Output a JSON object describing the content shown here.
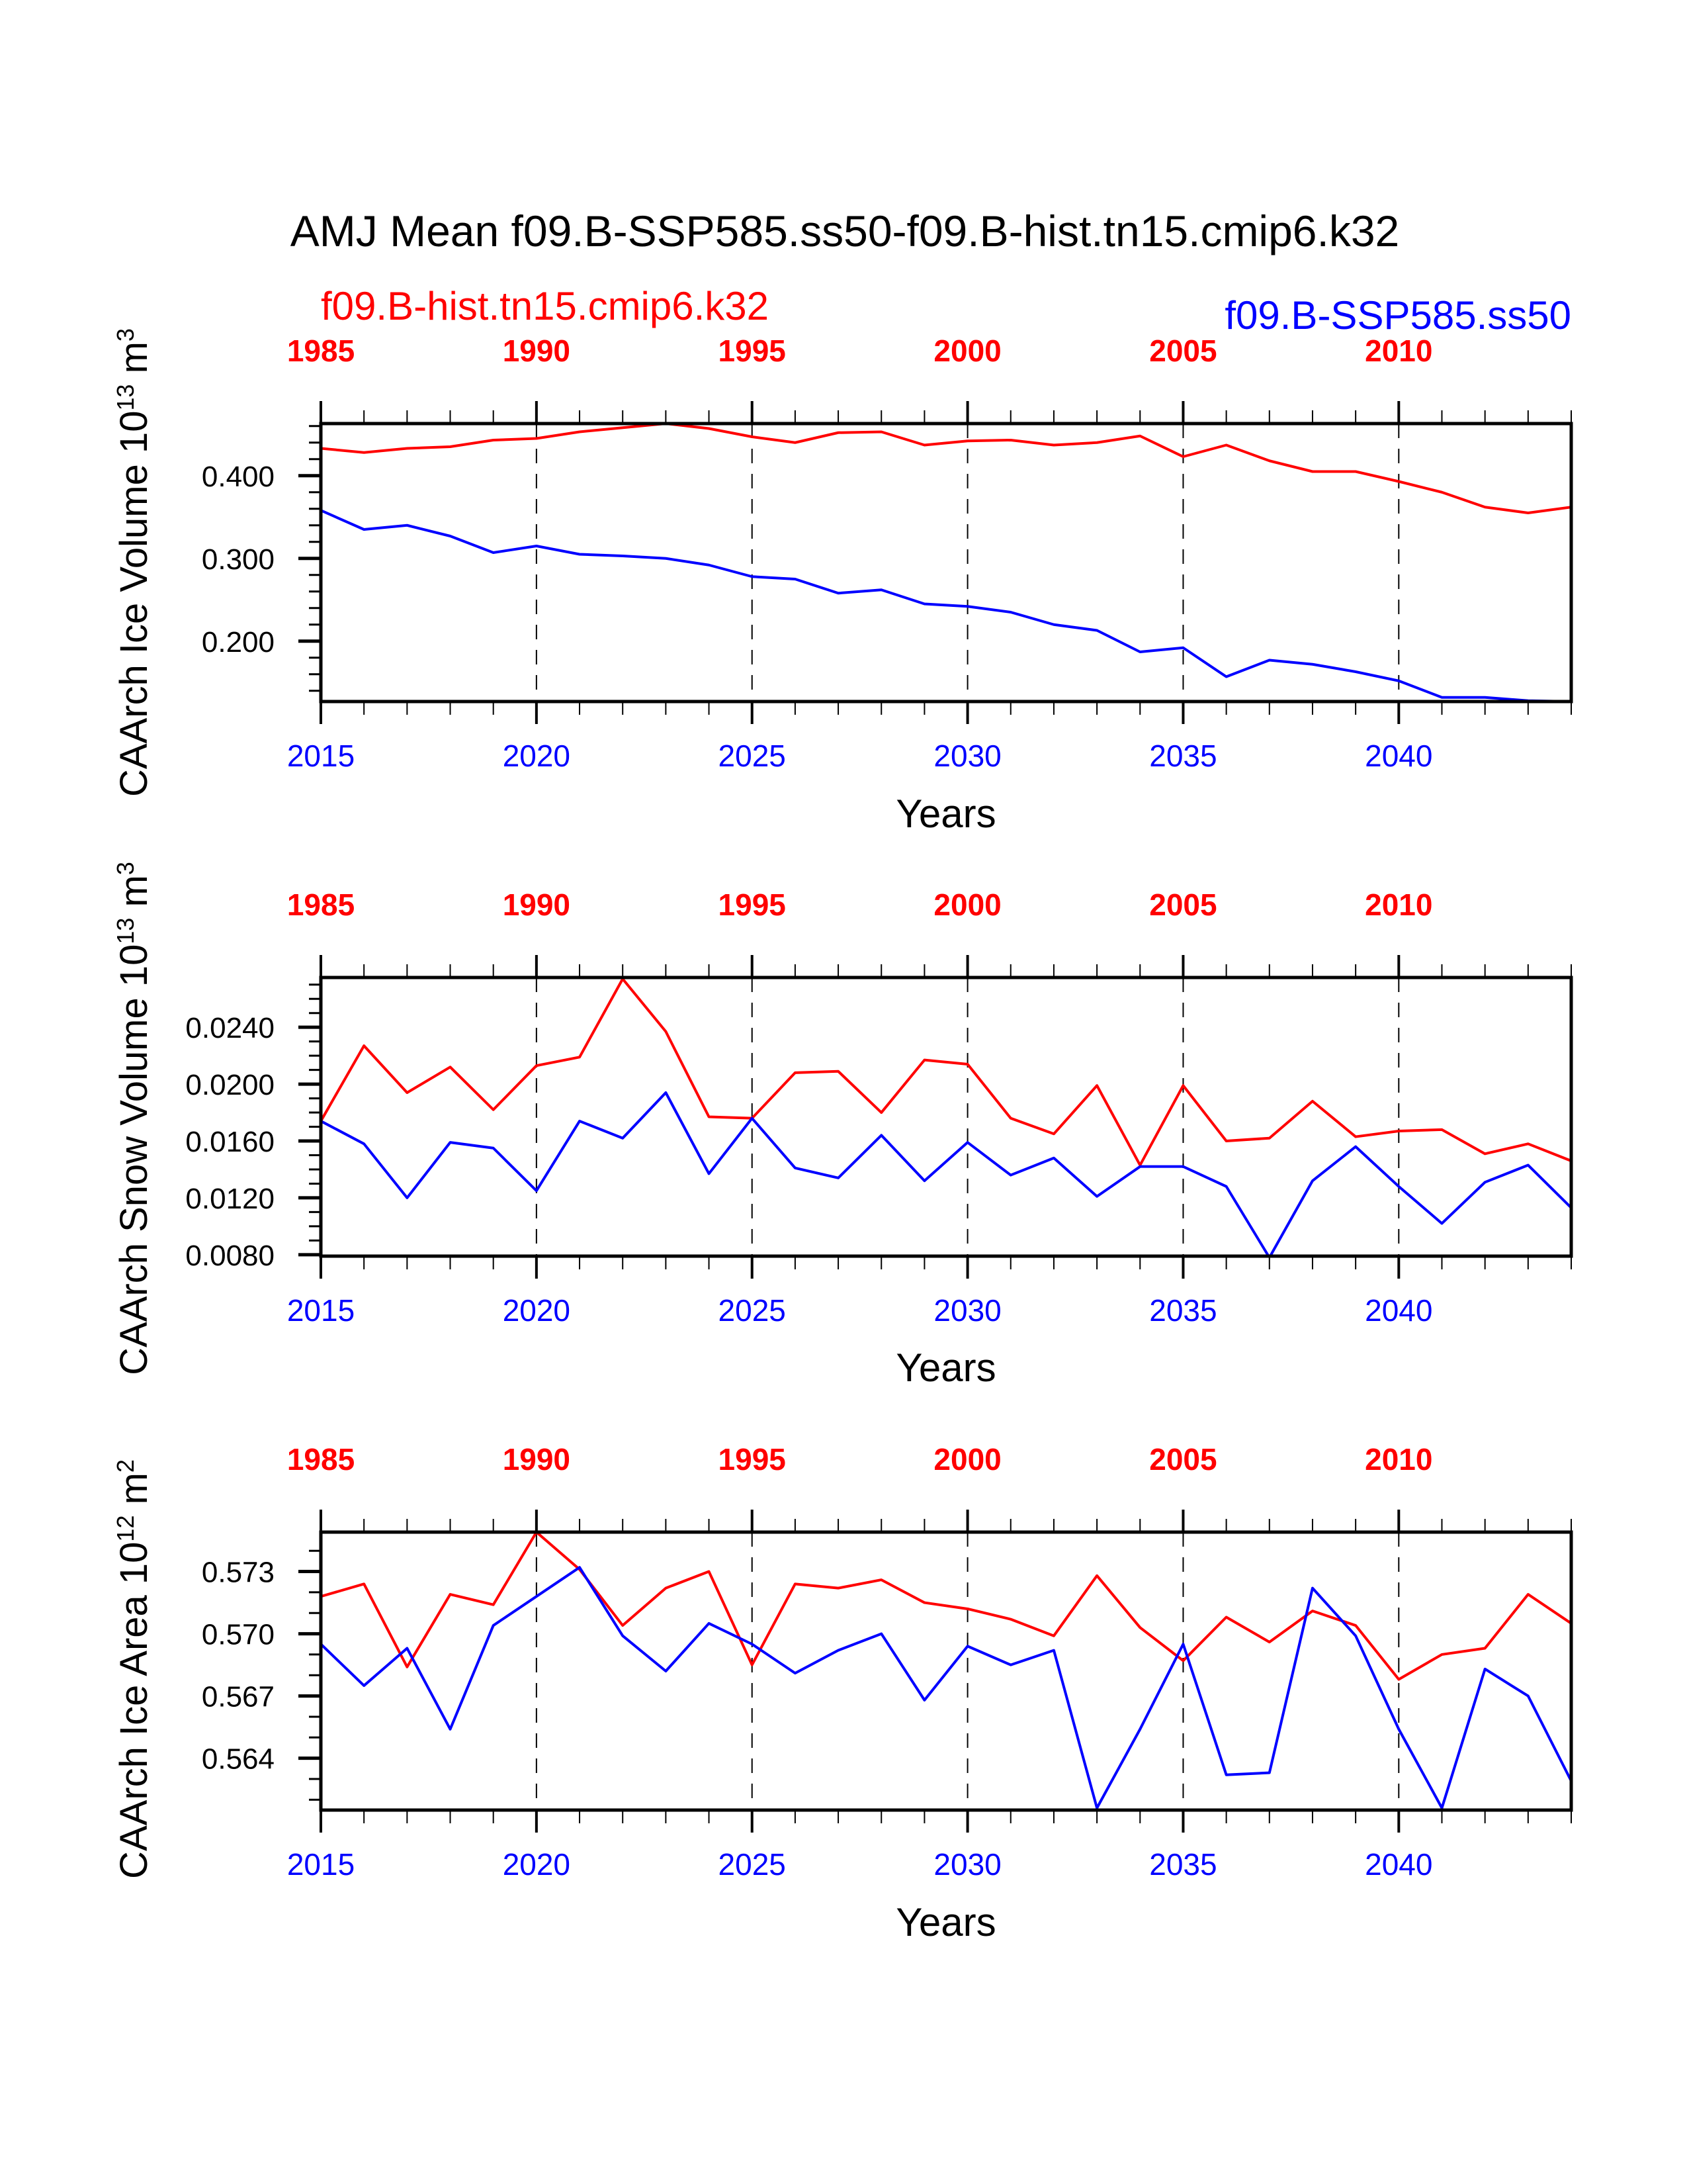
{
  "title": "AMJ Mean f09.B-SSP585.ss50-f09.B-hist.tn15.cmip6.k32",
  "legend": {
    "hist": {
      "label": "f09.B-hist.tn15.cmip6.k32",
      "color": "#ff0000"
    },
    "ssp": {
      "label": "f09.B-SSP585.ss50",
      "color": "#0000ff"
    }
  },
  "chart_data": [
    {
      "type": "line",
      "ylabel": "CAArch Ice Volume 10",
      "ylabel_exp": "13",
      "ylabel_unit": " m",
      "ylabel_unit_exp": "3",
      "xlabel": "Years",
      "ylim": [
        0.127,
        0.463
      ],
      "yticks": [
        "0.200",
        "0.300",
        "0.400"
      ],
      "ytick_values": [
        0.2,
        0.3,
        0.4
      ],
      "yminor_step": 0.02,
      "x": [
        2015,
        2016,
        2017,
        2018,
        2019,
        2020,
        2021,
        2022,
        2023,
        2024,
        2025,
        2026,
        2027,
        2028,
        2029,
        2030,
        2031,
        2032,
        2033,
        2034,
        2035,
        2036,
        2037,
        2038,
        2039,
        2040,
        2041,
        2042,
        2043,
        2044
      ],
      "xlim": [
        2015,
        2044
      ],
      "bottom_ticks": [
        "2015",
        "2020",
        "2025",
        "2030",
        "2035",
        "2040"
      ],
      "top_ticks": [
        "1985",
        "1990",
        "1995",
        "2000",
        "2005",
        "2010"
      ],
      "grid": "dashed vertical at major x ticks",
      "series": [
        {
          "name": "f09.B-hist.tn15.cmip6.k32",
          "color": "#ff0000",
          "values": [
            0.433,
            0.428,
            0.433,
            0.435,
            0.443,
            0.445,
            0.453,
            0.458,
            0.463,
            0.457,
            0.447,
            0.44,
            0.452,
            0.453,
            0.437,
            0.442,
            0.443,
            0.437,
            0.44,
            0.448,
            0.423,
            0.437,
            0.418,
            0.405,
            0.405,
            0.393,
            0.38,
            0.362,
            0.355,
            0.362
          ]
        },
        {
          "name": "f09.B-SSP585.ss50",
          "color": "#0000ff",
          "values": [
            0.358,
            0.335,
            0.34,
            0.327,
            0.307,
            0.315,
            0.305,
            0.303,
            0.3,
            0.292,
            0.278,
            0.275,
            0.258,
            0.262,
            0.245,
            0.242,
            0.235,
            0.22,
            0.213,
            0.187,
            0.192,
            0.157,
            0.177,
            0.172,
            0.163,
            0.152,
            0.132,
            0.132,
            0.128,
            0.127
          ]
        }
      ]
    },
    {
      "type": "line",
      "ylabel": "CAArch Snow Volume 10",
      "ylabel_exp": "13",
      "ylabel_unit": " m",
      "ylabel_unit_exp": "3",
      "xlabel": "Years",
      "ylim": [
        0.0079,
        0.0275
      ],
      "yticks": [
        "0.0080",
        "0.0120",
        "0.0160",
        "0.0200",
        "0.0240"
      ],
      "ytick_values": [
        0.008,
        0.012,
        0.016,
        0.02,
        0.024
      ],
      "yminor_step": 0.001,
      "x": [
        2015,
        2016,
        2017,
        2018,
        2019,
        2020,
        2021,
        2022,
        2023,
        2024,
        2025,
        2026,
        2027,
        2028,
        2029,
        2030,
        2031,
        2032,
        2033,
        2034,
        2035,
        2036,
        2037,
        2038,
        2039,
        2040,
        2041,
        2042,
        2043,
        2044
      ],
      "xlim": [
        2015,
        2044
      ],
      "bottom_ticks": [
        "2015",
        "2020",
        "2025",
        "2030",
        "2035",
        "2040"
      ],
      "top_ticks": [
        "1985",
        "1990",
        "1995",
        "2000",
        "2005",
        "2010"
      ],
      "grid": "dashed vertical at major x ticks",
      "series": [
        {
          "name": "f09.B-hist.tn15.cmip6.k32",
          "color": "#ff0000",
          "values": [
            0.0174,
            0.0227,
            0.0194,
            0.0212,
            0.0182,
            0.0213,
            0.0219,
            0.0274,
            0.0237,
            0.0177,
            0.0176,
            0.0208,
            0.0209,
            0.018,
            0.0217,
            0.0214,
            0.0176,
            0.0165,
            0.0199,
            0.0143,
            0.0199,
            0.016,
            0.0162,
            0.0188,
            0.0163,
            0.0167,
            0.0168,
            0.0151,
            0.0158,
            0.0146
          ]
        },
        {
          "name": "f09.B-SSP585.ss50",
          "color": "#0000ff",
          "values": [
            0.0174,
            0.0158,
            0.012,
            0.0159,
            0.0155,
            0.0125,
            0.0174,
            0.0162,
            0.0194,
            0.0137,
            0.0176,
            0.0141,
            0.0134,
            0.0164,
            0.0132,
            0.0159,
            0.0136,
            0.0148,
            0.0121,
            0.0142,
            0.0142,
            0.0128,
            0.0078,
            0.0132,
            0.0156,
            0.0128,
            0.0102,
            0.0131,
            0.0143,
            0.0113
          ]
        }
      ]
    },
    {
      "type": "line",
      "ylabel": "CAArch Ice Area 10",
      "ylabel_exp": "12",
      "ylabel_unit": " m",
      "ylabel_unit_exp": "2",
      "xlabel": "Years",
      "ylim": [
        0.5615,
        0.5749
      ],
      "yticks": [
        "0.564",
        "0.567",
        "0.570",
        "0.573"
      ],
      "ytick_values": [
        0.564,
        0.567,
        0.57,
        0.573
      ],
      "yminor_step": 0.001,
      "x": [
        2015,
        2016,
        2017,
        2018,
        2019,
        2020,
        2021,
        2022,
        2023,
        2024,
        2025,
        2026,
        2027,
        2028,
        2029,
        2030,
        2031,
        2032,
        2033,
        2034,
        2035,
        2036,
        2037,
        2038,
        2039,
        2040,
        2041,
        2042,
        2043,
        2044
      ],
      "xlim": [
        2015,
        2044
      ],
      "bottom_ticks": [
        "2015",
        "2020",
        "2025",
        "2030",
        "2035",
        "2040"
      ],
      "top_ticks": [
        "1985",
        "1990",
        "1995",
        "2000",
        "2005",
        "2010"
      ],
      "grid": "dashed vertical at major x ticks",
      "series": [
        {
          "name": "f09.B-hist.tn15.cmip6.k32",
          "color": "#ff0000",
          "values": [
            0.5718,
            0.5724,
            0.5684,
            0.5719,
            0.5714,
            0.5749,
            0.5731,
            0.5704,
            0.5722,
            0.573,
            0.5685,
            0.5724,
            0.5722,
            0.5726,
            0.5715,
            0.5712,
            0.5707,
            0.5699,
            0.5728,
            0.5703,
            0.5687,
            0.5708,
            0.5696,
            0.5711,
            0.5704,
            0.5678,
            0.569,
            0.5693,
            0.5719,
            0.5705
          ]
        },
        {
          "name": "f09.B-SSP585.ss50",
          "color": "#0000ff",
          "values": [
            0.5695,
            0.5675,
            0.5693,
            0.5654,
            0.5704,
            0.5718,
            0.5732,
            0.5699,
            0.5682,
            0.5705,
            0.5695,
            0.5681,
            0.5692,
            0.57,
            0.5668,
            0.5694,
            0.5685,
            0.5692,
            0.5616,
            0.5654,
            0.5695,
            0.5632,
            0.5633,
            0.5722,
            0.5699,
            0.5654,
            0.5616,
            0.5683,
            0.567,
            0.5629
          ]
        }
      ]
    }
  ]
}
